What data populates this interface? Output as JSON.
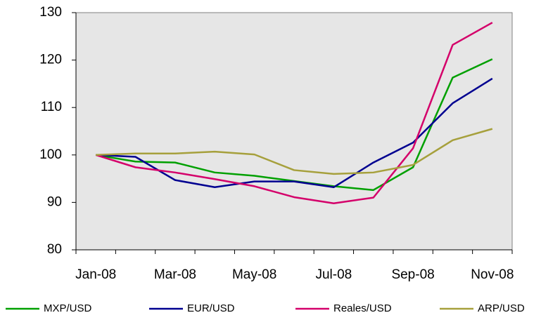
{
  "chart_data": {
    "type": "line",
    "categories": [
      "Jan-08",
      null,
      "Mar-08",
      null,
      "May-08",
      null,
      "Jul-08",
      null,
      "Sep-08",
      null,
      "Nov-08"
    ],
    "series": [
      {
        "name": "MXP/USD",
        "color": "#00a000",
        "values": [
          100,
          98.6,
          98.4,
          96.3,
          95.6,
          94.5,
          93.4,
          92.6,
          97.4,
          116.3,
          120.2
        ]
      },
      {
        "name": "EUR/USD",
        "color": "#000090",
        "values": [
          100,
          99.6,
          94.7,
          93.2,
          94.4,
          94.4,
          93.2,
          98.4,
          102.6,
          110.9,
          116.1
        ]
      },
      {
        "name": "Reales/USD",
        "color": "#d4006a",
        "values": [
          100,
          97.4,
          96.3,
          94.9,
          93.4,
          91.1,
          89.8,
          91.0,
          101.4,
          123.2,
          127.9
        ]
      },
      {
        "name": "ARP/USD",
        "color": "#a6a03c",
        "values": [
          100,
          100.3,
          100.3,
          100.7,
          100.1,
          96.8,
          96.0,
          96.3,
          97.9,
          103.1,
          105.5
        ]
      }
    ],
    "ylim": [
      80,
      130
    ],
    "yticks": [
      80,
      90,
      100,
      110,
      120,
      130
    ],
    "legend": "bottom"
  }
}
